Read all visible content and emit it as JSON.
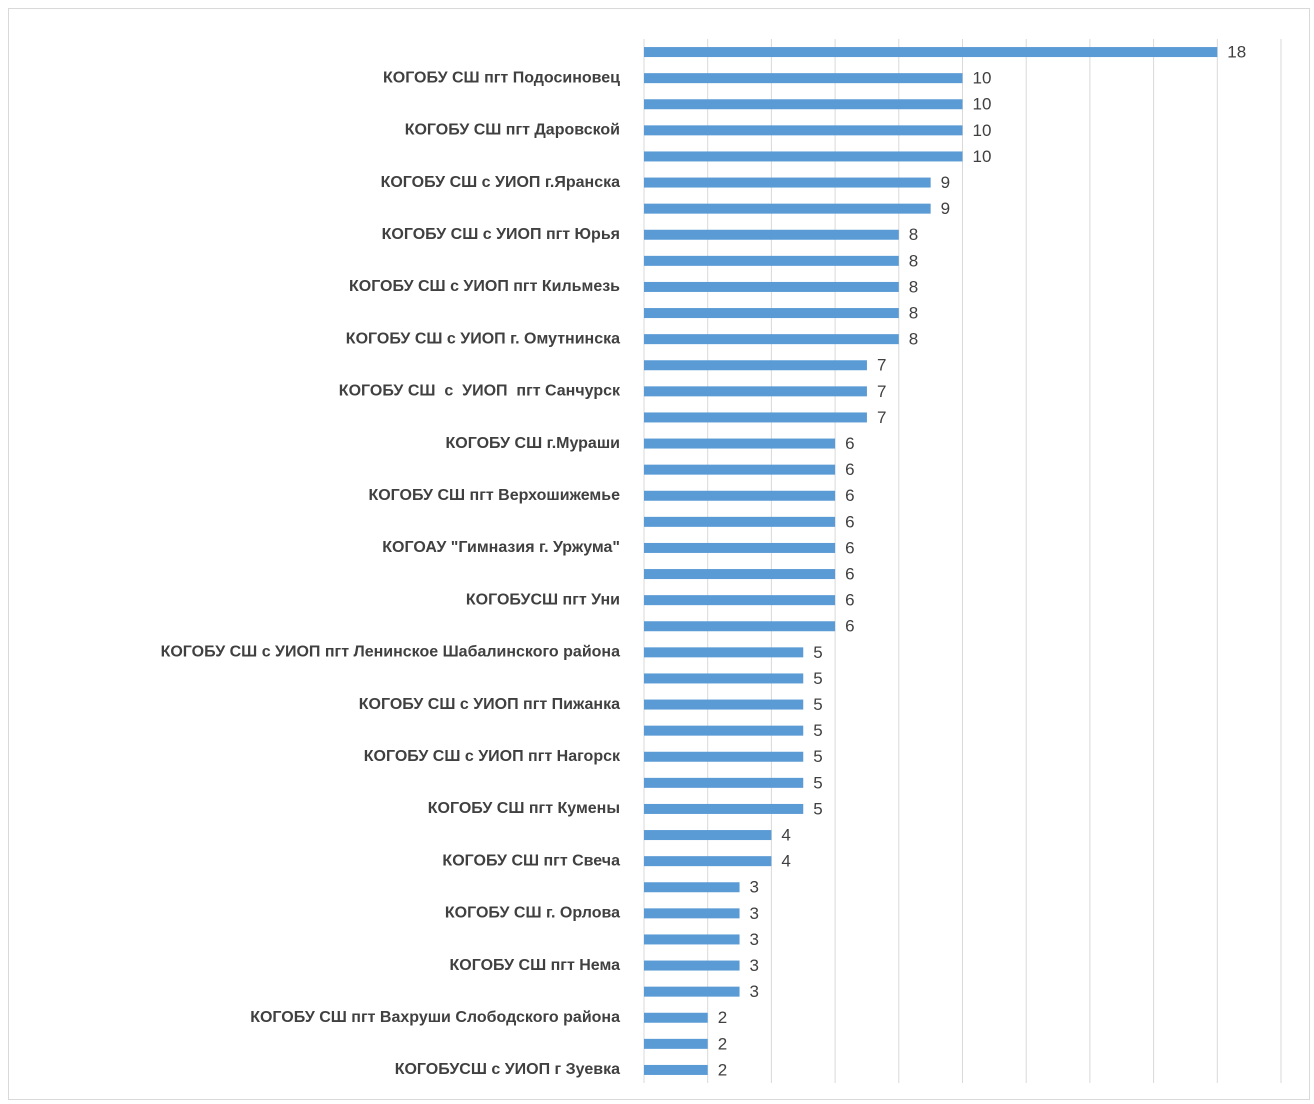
{
  "chart_data": {
    "type": "bar",
    "orientation": "horizontal",
    "categories": [
      null,
      "КОГОБУ СШ пгт Подосиновец",
      null,
      "КОГОБУ СШ пгт Даровской",
      null,
      "КОГОБУ СШ с УИОП г.Яранска",
      null,
      "КОГОБУ СШ с УИОП пгт Юрья",
      null,
      "КОГОБУ СШ с УИОП пгт Кильмезь",
      null,
      "КОГОБУ СШ с УИОП г. Омутнинска",
      null,
      "КОГОБУ СШ  с  УИОП  пгт Санчурск",
      null,
      "КОГОБУ СШ г.Мураши",
      null,
      "КОГОБУ СШ пгт Верхошижемье",
      null,
      "КОГОАУ \"Гимназия г. Уржума\"",
      null,
      "КОГОБУСШ пгт Уни",
      null,
      "КОГОБУ СШ с УИОП пгт Ленинское Шабалинского района",
      null,
      "КОГОБУ СШ с УИОП пгт Пижанка",
      null,
      "КОГОБУ СШ с УИОП пгт Нагорск",
      null,
      "КОГОБУ СШ пгт Кумены",
      null,
      "КОГОБУ СШ пгт Свеча",
      null,
      "КОГОБУ СШ г. Орлова",
      null,
      "КОГОБУ СШ пгт Нема",
      null,
      "КОГОБУ СШ пгт Вахруши Слободского района",
      null,
      "КОГОБУСШ с УИОП г Зуевка"
    ],
    "values": [
      18,
      10,
      10,
      10,
      10,
      9,
      9,
      8,
      8,
      8,
      8,
      8,
      7,
      7,
      7,
      6,
      6,
      6,
      6,
      6,
      6,
      6,
      6,
      5,
      5,
      5,
      5,
      5,
      5,
      5,
      4,
      4,
      3,
      3,
      3,
      3,
      3,
      2,
      2,
      2
    ],
    "color": "#5b9bd5",
    "xlim": [
      0,
      20
    ],
    "xticks": [
      0,
      2,
      4,
      6,
      8,
      10,
      12,
      14,
      16,
      18,
      20
    ],
    "grid": true
  }
}
